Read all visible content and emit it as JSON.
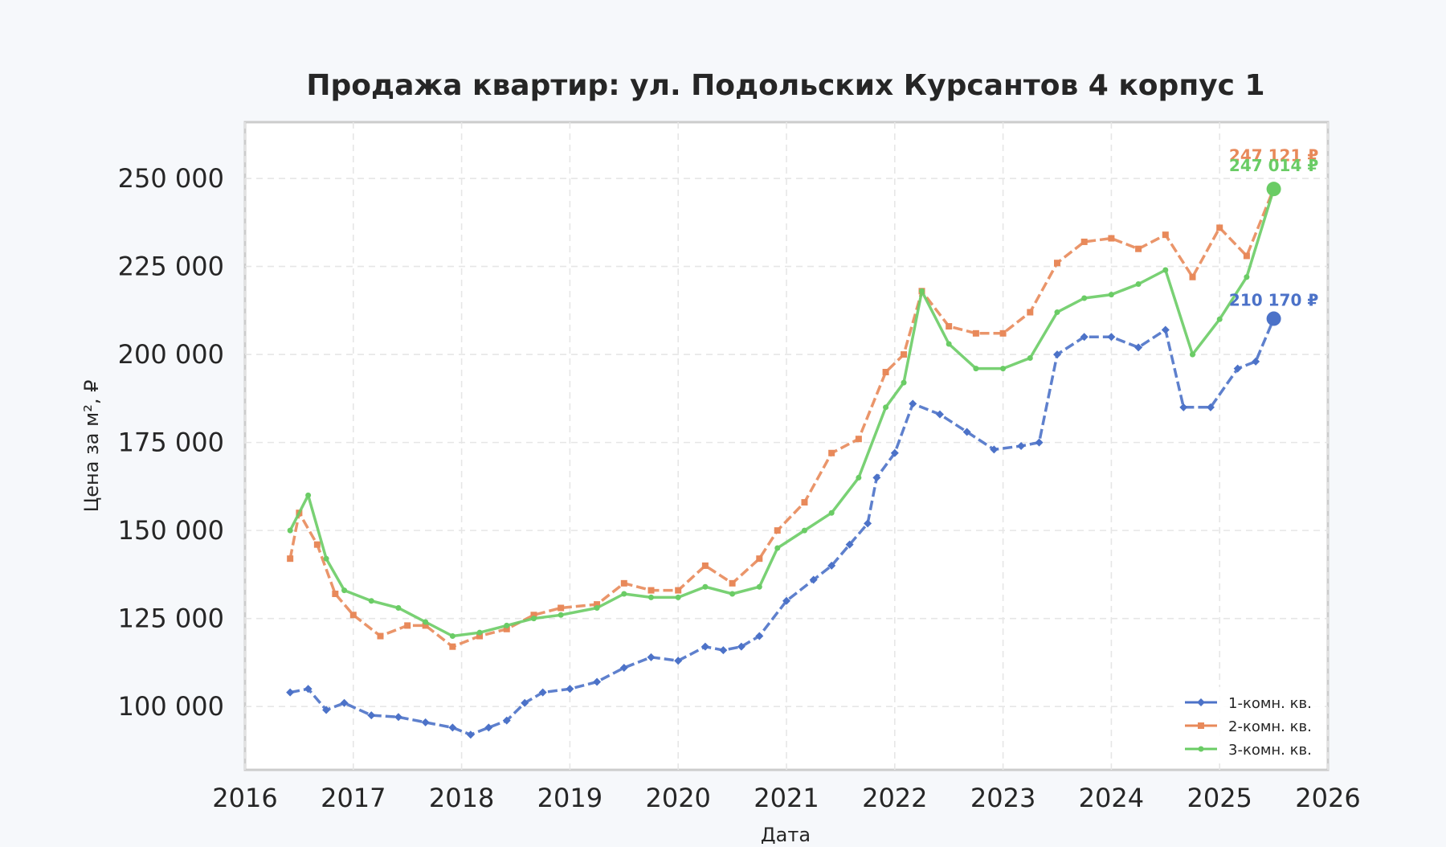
{
  "chart_data": {
    "type": "line",
    "title": "Продажа квартир: ул. Подольских Курсантов 4 корпус 1",
    "xlabel": "Дата",
    "ylabel": "Цена за м², ₽",
    "xlim": [
      "2016-01-01",
      "2026-01-01"
    ],
    "ylim": [
      82000,
      266000
    ],
    "x_ticks": [
      "2016",
      "2017",
      "2018",
      "2019",
      "2020",
      "2021",
      "2022",
      "2023",
      "2024",
      "2025",
      "2026"
    ],
    "y_ticks": [
      100000,
      125000,
      150000,
      175000,
      200000,
      225000,
      250000
    ],
    "y_tick_labels": [
      "100 000",
      "125 000",
      "150 000",
      "175 000",
      "200 000",
      "225 000",
      "250 000"
    ],
    "grid": true,
    "legend_position": "bottom-right",
    "series": [
      {
        "name": "1-комн. кв.",
        "color": "#4c72c8",
        "marker": "diamond",
        "points": [
          [
            "2016-06",
            104000
          ],
          [
            "2016-08",
            105000
          ],
          [
            "2016-10",
            99000
          ],
          [
            "2016-12",
            101000
          ],
          [
            "2017-03",
            97500
          ],
          [
            "2017-06",
            97000
          ],
          [
            "2017-09",
            95500
          ],
          [
            "2017-12",
            94000
          ],
          [
            "2018-02",
            92000
          ],
          [
            "2018-04",
            94000
          ],
          [
            "2018-06",
            96000
          ],
          [
            "2018-08",
            101000
          ],
          [
            "2018-10",
            104000
          ],
          [
            "2019-01",
            105000
          ],
          [
            "2019-04",
            107000
          ],
          [
            "2019-07",
            111000
          ],
          [
            "2019-10",
            114000
          ],
          [
            "2020-01",
            113000
          ],
          [
            "2020-04",
            117000
          ],
          [
            "2020-06",
            116000
          ],
          [
            "2020-08",
            117000
          ],
          [
            "2020-10",
            120000
          ],
          [
            "2021-01",
            130000
          ],
          [
            "2021-04",
            136000
          ],
          [
            "2021-06",
            140000
          ],
          [
            "2021-08",
            146000
          ],
          [
            "2021-10",
            152000
          ],
          [
            "2021-11",
            165000
          ],
          [
            "2022-01",
            172000
          ],
          [
            "2022-03",
            186000
          ],
          [
            "2022-06",
            183000
          ],
          [
            "2022-09",
            178000
          ],
          [
            "2022-12",
            173000
          ],
          [
            "2023-03",
            174000
          ],
          [
            "2023-05",
            175000
          ],
          [
            "2023-07",
            200000
          ],
          [
            "2023-10",
            205000
          ],
          [
            "2024-01",
            205000
          ],
          [
            "2024-04",
            202000
          ],
          [
            "2024-07",
            207000
          ],
          [
            "2024-09",
            185000
          ],
          [
            "2024-12",
            185000
          ],
          [
            "2025-03",
            196000
          ],
          [
            "2025-05",
            198000
          ],
          [
            "2025-07",
            210170
          ]
        ]
      },
      {
        "name": "2-комн. кв.",
        "color": "#e8895a",
        "marker": "square",
        "points": [
          [
            "2016-06",
            142000
          ],
          [
            "2016-07",
            155000
          ],
          [
            "2016-09",
            146000
          ],
          [
            "2016-11",
            132000
          ],
          [
            "2017-01",
            126000
          ],
          [
            "2017-04",
            120000
          ],
          [
            "2017-07",
            123000
          ],
          [
            "2017-09",
            123000
          ],
          [
            "2017-12",
            117000
          ],
          [
            "2018-03",
            120000
          ],
          [
            "2018-06",
            122000
          ],
          [
            "2018-09",
            126000
          ],
          [
            "2018-12",
            128000
          ],
          [
            "2019-04",
            129000
          ],
          [
            "2019-07",
            135000
          ],
          [
            "2019-10",
            133000
          ],
          [
            "2020-01",
            133000
          ],
          [
            "2020-04",
            140000
          ],
          [
            "2020-07",
            135000
          ],
          [
            "2020-10",
            142000
          ],
          [
            "2020-12",
            150000
          ],
          [
            "2021-03",
            158000
          ],
          [
            "2021-06",
            172000
          ],
          [
            "2021-09",
            176000
          ],
          [
            "2021-12",
            195000
          ],
          [
            "2022-02",
            200000
          ],
          [
            "2022-04",
            218000
          ],
          [
            "2022-07",
            208000
          ],
          [
            "2022-10",
            206000
          ],
          [
            "2023-01",
            206000
          ],
          [
            "2023-04",
            212000
          ],
          [
            "2023-07",
            226000
          ],
          [
            "2023-10",
            232000
          ],
          [
            "2024-01",
            233000
          ],
          [
            "2024-04",
            230000
          ],
          [
            "2024-07",
            234000
          ],
          [
            "2024-10",
            222000
          ],
          [
            "2025-01",
            236000
          ],
          [
            "2025-04",
            228000
          ],
          [
            "2025-07",
            247121
          ]
        ]
      },
      {
        "name": "3-комн. кв.",
        "color": "#6acc65",
        "marker": "point",
        "points": [
          [
            "2016-06",
            150000
          ],
          [
            "2016-08",
            160000
          ],
          [
            "2016-10",
            142000
          ],
          [
            "2016-12",
            133000
          ],
          [
            "2017-03",
            130000
          ],
          [
            "2017-06",
            128000
          ],
          [
            "2017-09",
            124000
          ],
          [
            "2017-12",
            120000
          ],
          [
            "2018-03",
            121000
          ],
          [
            "2018-06",
            123000
          ],
          [
            "2018-09",
            125000
          ],
          [
            "2018-12",
            126000
          ],
          [
            "2019-04",
            128000
          ],
          [
            "2019-07",
            132000
          ],
          [
            "2019-10",
            131000
          ],
          [
            "2020-01",
            131000
          ],
          [
            "2020-04",
            134000
          ],
          [
            "2020-07",
            132000
          ],
          [
            "2020-10",
            134000
          ],
          [
            "2020-12",
            145000
          ],
          [
            "2021-03",
            150000
          ],
          [
            "2021-06",
            155000
          ],
          [
            "2021-09",
            165000
          ],
          [
            "2021-12",
            185000
          ],
          [
            "2022-02",
            192000
          ],
          [
            "2022-04",
            218000
          ],
          [
            "2022-07",
            203000
          ],
          [
            "2022-10",
            196000
          ],
          [
            "2023-01",
            196000
          ],
          [
            "2023-04",
            199000
          ],
          [
            "2023-07",
            212000
          ],
          [
            "2023-10",
            216000
          ],
          [
            "2024-01",
            217000
          ],
          [
            "2024-04",
            220000
          ],
          [
            "2024-07",
            224000
          ],
          [
            "2024-10",
            200000
          ],
          [
            "2025-01",
            210000
          ],
          [
            "2025-04",
            222000
          ],
          [
            "2025-07",
            247014
          ]
        ]
      }
    ],
    "annotations": [
      {
        "series": "2-комн. кв.",
        "text": "247 121 ₽",
        "x": "2025-07",
        "y": 247121
      },
      {
        "series": "3-комн. кв.",
        "text": "247 014 ₽",
        "x": "2025-07",
        "y": 247014
      },
      {
        "series": "1-комн. кв.",
        "text": "210 170 ₽",
        "x": "2025-07",
        "y": 210170
      }
    ]
  }
}
